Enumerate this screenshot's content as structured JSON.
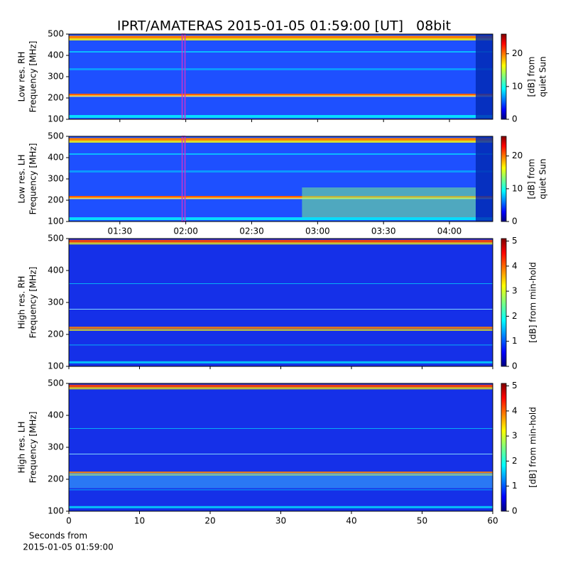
{
  "chart_data": [
    {
      "type": "heatmap",
      "title": "IPRT/AMATERAS 2015-01-05 01:59:00 [UT]   08bit",
      "ylabel": [
        "Low res. RH",
        "Frequency [MHz]"
      ],
      "xlim": [
        66.8,
        259.7
      ],
      "xticks": [
        90,
        120,
        150,
        180,
        210,
        240
      ],
      "show_xtick_labels": false,
      "ylim": [
        100,
        500
      ],
      "yticks": [
        100,
        200,
        300,
        400,
        500
      ],
      "marker_x": 119,
      "marker_color": "#cc33cc",
      "colormap": "jet",
      "clim": [
        0,
        26
      ],
      "cticks": [
        0,
        10,
        20
      ],
      "clabel": [
        "[dB] from",
        "quiet Sun"
      ]
    },
    {
      "type": "heatmap",
      "ylabel": [
        "Low res. LH",
        "Frequency [MHz]"
      ],
      "xlim": [
        66.8,
        259.7
      ],
      "xticks": [
        {
          "value": 90,
          "label": "01:30"
        },
        {
          "value": 120,
          "label": "02:00"
        },
        {
          "value": 150,
          "label": "02:30"
        },
        {
          "value": 180,
          "label": "03:00"
        },
        {
          "value": 210,
          "label": "03:30"
        },
        {
          "value": 240,
          "label": "04:00"
        }
      ],
      "show_xtick_labels": true,
      "ylim": [
        100,
        500
      ],
      "yticks": [
        100,
        200,
        300,
        400,
        500
      ],
      "marker_x": 119,
      "marker_color": "#cc33cc",
      "colormap": "jet",
      "clim": [
        0,
        26
      ],
      "cticks": [
        0,
        10,
        20
      ],
      "clabel": [
        "[dB] from",
        "quiet Sun"
      ]
    },
    {
      "type": "heatmap",
      "ylabel": [
        "High res. RH",
        "Frequency [MHz]"
      ],
      "xlim": [
        0,
        60
      ],
      "xticks": [
        0,
        10,
        20,
        30,
        40,
        50,
        60
      ],
      "show_xtick_labels": false,
      "ylim": [
        100,
        500
      ],
      "yticks": [
        100,
        200,
        300,
        400,
        500
      ],
      "colormap": "jet",
      "clim": [
        0,
        5.1
      ],
      "cticks": [
        0,
        1,
        2,
        3,
        4,
        5
      ],
      "clabel": [
        "[dB] from min-hold"
      ]
    },
    {
      "type": "heatmap",
      "ylabel": [
        "High res. LH",
        "Frequency [MHz]"
      ],
      "xlabel": [
        "Seconds from",
        "2015-01-05 01:59:00"
      ],
      "xlim": [
        0,
        60
      ],
      "xticks": [
        0,
        10,
        20,
        30,
        40,
        50,
        60
      ],
      "show_xtick_labels": true,
      "ylim": [
        100,
        500
      ],
      "yticks": [
        100,
        200,
        300,
        400,
        500
      ],
      "colormap": "jet",
      "clim": [
        0,
        5.1
      ],
      "cticks": [
        0,
        1,
        2,
        3,
        4,
        5
      ],
      "clabel": [
        "[dB] from min-hold"
      ]
    }
  ]
}
